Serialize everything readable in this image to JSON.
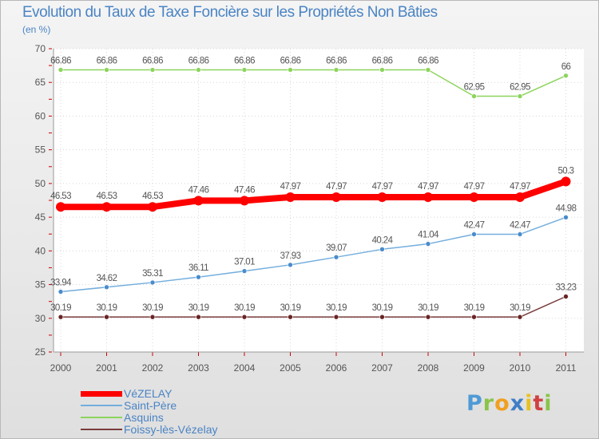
{
  "chart_data": {
    "type": "line",
    "title": "Evolution du Taux de Taxe Foncière sur les Propriétés Non Bâties",
    "subtitle": "(en %)",
    "xlabel": "",
    "ylabel": "",
    "categories": [
      "2000",
      "2001",
      "2002",
      "2003",
      "2004",
      "2005",
      "2006",
      "2007",
      "2008",
      "2009",
      "2010",
      "2011"
    ],
    "ylim": [
      25,
      70
    ],
    "yticks": [
      25,
      30,
      35,
      40,
      45,
      50,
      55,
      60,
      65,
      70
    ],
    "grid": true,
    "legend_position": "bottom-left",
    "series": [
      {
        "name": "Asquins",
        "color": "#8cd45c",
        "point_color": "#8cd45c",
        "width": 1.5,
        "marker": 3,
        "values": [
          66.86,
          66.86,
          66.86,
          66.86,
          66.86,
          66.86,
          66.86,
          66.86,
          66.86,
          62.95,
          62.95,
          66
        ],
        "labels": [
          "66.86",
          "66.86",
          "66.86",
          "66.86",
          "66.86",
          "66.86",
          "66.86",
          "66.86",
          "66.86",
          "62.95",
          "62.95",
          "66"
        ]
      },
      {
        "name": "Saint-Père",
        "color": "#73aedd",
        "point_color": "#4a8ccc",
        "width": 1.5,
        "marker": 3,
        "values": [
          33.94,
          34.62,
          35.31,
          36.11,
          37.01,
          37.93,
          39.07,
          40.24,
          41.04,
          42.47,
          42.47,
          44.98
        ],
        "labels": [
          "33.94",
          "34.62",
          "35.31",
          "36.11",
          "37.01",
          "37.93",
          "39.07",
          "40.24",
          "41.04",
          "42.47",
          "42.47",
          "44.98"
        ]
      },
      {
        "name": "Foissy-lès-Vézelay",
        "color": "#7a3c3c",
        "point_color": "#6a2424",
        "width": 1.5,
        "marker": 3,
        "values": [
          30.19,
          30.19,
          30.19,
          30.19,
          30.19,
          30.19,
          30.19,
          30.19,
          30.19,
          30.19,
          30.19,
          33.23
        ],
        "labels": [
          "30.19",
          "30.19",
          "30.19",
          "30.19",
          "30.19",
          "30.19",
          "30.19",
          "30.19",
          "30.19",
          "30.19",
          "30.19",
          "33.23"
        ]
      },
      {
        "name": "VéZELAY",
        "color": "#ff0000",
        "point_color": "#ff0000",
        "width": 8,
        "marker": 6,
        "values": [
          46.53,
          46.53,
          46.53,
          47.46,
          47.46,
          47.97,
          47.97,
          47.97,
          47.97,
          47.97,
          47.97,
          50.3
        ],
        "labels": [
          "46.53",
          "46.53",
          "46.53",
          "47.46",
          "47.46",
          "47.97",
          "47.97",
          "47.97",
          "47.97",
          "47.97",
          "47.97",
          "50.3"
        ]
      }
    ],
    "legend_order": [
      "VéZELAY",
      "Saint-Père",
      "Asquins",
      "Foissy-lès-Vézelay"
    ]
  },
  "logo": {
    "letters": [
      "P",
      "r",
      "o",
      "x",
      "i",
      "t",
      "i"
    ],
    "colors": [
      "#4f9ad6",
      "#8ac44a",
      "#f0a020",
      "#3f7ec6",
      "#e8c020",
      "#d04040",
      "#8ac44a"
    ]
  }
}
